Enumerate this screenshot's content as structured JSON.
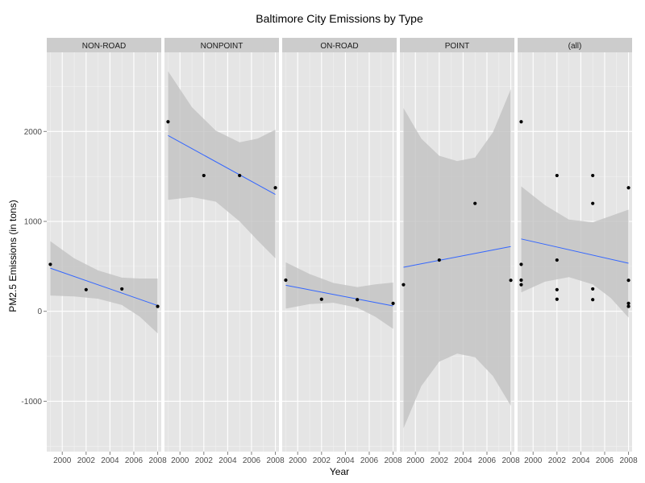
{
  "chart_data": {
    "type": "scatter",
    "title": "Baltimore City Emissions by Type",
    "xlabel": "Year",
    "ylabel": "PM2.5 Emissions (in tons)",
    "xlim": [
      1998.7,
      2008.3
    ],
    "ylim": [
      -1560,
      2880
    ],
    "x_ticks": [
      2000,
      2002,
      2004,
      2006,
      2008
    ],
    "y_ticks": [
      -1000,
      0,
      1000,
      2000
    ],
    "grid": true,
    "colors": {
      "panel_bg": "#e5e5e5",
      "strip_bg": "#cccccc",
      "grid_major": "#ffffff",
      "grid_minor": "#f2f2f2",
      "points": "#000000",
      "fit_line": "#3366ff",
      "ribbon": "#bfbfbf"
    },
    "facets": [
      {
        "label": "NON-ROAD",
        "points": [
          {
            "x": 1999,
            "y": 522
          },
          {
            "x": 2002,
            "y": 241
          },
          {
            "x": 2005,
            "y": 249
          },
          {
            "x": 2008,
            "y": 55
          }
        ],
        "fit": {
          "x": [
            1999,
            2008
          ],
          "y": [
            480,
            64
          ]
        },
        "band": [
          {
            "x": 1999,
            "lo": 175,
            "hi": 780
          },
          {
            "x": 2001,
            "lo": 165,
            "hi": 590
          },
          {
            "x": 2003,
            "lo": 140,
            "hi": 455
          },
          {
            "x": 2005,
            "lo": 70,
            "hi": 375
          },
          {
            "x": 2006.5,
            "lo": -60,
            "hi": 365
          },
          {
            "x": 2008,
            "lo": -245,
            "hi": 365
          }
        ]
      },
      {
        "label": "NONPOINT",
        "points": [
          {
            "x": 1999,
            "y": 2108
          },
          {
            "x": 2002,
            "y": 1510
          },
          {
            "x": 2005,
            "y": 1510
          },
          {
            "x": 2008,
            "y": 1374
          }
        ],
        "fit": {
          "x": [
            1999,
            2008
          ],
          "y": [
            1955,
            1300
          ]
        },
        "band": [
          {
            "x": 1999,
            "lo": 1240,
            "hi": 2670
          },
          {
            "x": 2001,
            "lo": 1270,
            "hi": 2270
          },
          {
            "x": 2003,
            "lo": 1220,
            "hi": 2010
          },
          {
            "x": 2005,
            "lo": 1000,
            "hi": 1880
          },
          {
            "x": 2006.5,
            "lo": 790,
            "hi": 1920
          },
          {
            "x": 2008,
            "lo": 590,
            "hi": 2020
          }
        ]
      },
      {
        "label": "ON-ROAD",
        "points": [
          {
            "x": 1999,
            "y": 347
          },
          {
            "x": 2002,
            "y": 134
          },
          {
            "x": 2005,
            "y": 130
          },
          {
            "x": 2008,
            "y": 88
          }
        ],
        "fit": {
          "x": [
            1999,
            2008
          ],
          "y": [
            290,
            60
          ]
        },
        "band": [
          {
            "x": 1999,
            "lo": 30,
            "hi": 545
          },
          {
            "x": 2001,
            "lo": 80,
            "hi": 415
          },
          {
            "x": 2003,
            "lo": 95,
            "hi": 315
          },
          {
            "x": 2005,
            "lo": 40,
            "hi": 270
          },
          {
            "x": 2006.5,
            "lo": -60,
            "hi": 300
          },
          {
            "x": 2008,
            "lo": -195,
            "hi": 320
          }
        ]
      },
      {
        "label": "POINT",
        "points": [
          {
            "x": 1999,
            "y": 296
          },
          {
            "x": 2002,
            "y": 570
          },
          {
            "x": 2005,
            "y": 1200
          },
          {
            "x": 2008,
            "y": 345
          }
        ],
        "fit": {
          "x": [
            1999,
            2008
          ],
          "y": [
            490,
            720
          ]
        },
        "band": [
          {
            "x": 1999,
            "lo": -1300,
            "hi": 2260
          },
          {
            "x": 2000.5,
            "lo": -830,
            "hi": 1920
          },
          {
            "x": 2002,
            "lo": -560,
            "hi": 1730
          },
          {
            "x": 2003.5,
            "lo": -470,
            "hi": 1670
          },
          {
            "x": 2005,
            "lo": -510,
            "hi": 1710
          },
          {
            "x": 2006.5,
            "lo": -720,
            "hi": 1990
          },
          {
            "x": 2008,
            "lo": -1050,
            "hi": 2470
          }
        ]
      },
      {
        "label": "(all)",
        "points": [
          {
            "x": 1999,
            "y": 2108
          },
          {
            "x": 1999,
            "y": 522
          },
          {
            "x": 1999,
            "y": 347
          },
          {
            "x": 1999,
            "y": 296
          },
          {
            "x": 2002,
            "y": 1510
          },
          {
            "x": 2002,
            "y": 570
          },
          {
            "x": 2002,
            "y": 241
          },
          {
            "x": 2002,
            "y": 134
          },
          {
            "x": 2005,
            "y": 1510
          },
          {
            "x": 2005,
            "y": 1200
          },
          {
            "x": 2005,
            "y": 249
          },
          {
            "x": 2005,
            "y": 130
          },
          {
            "x": 2008,
            "y": 1374
          },
          {
            "x": 2008,
            "y": 345
          },
          {
            "x": 2008,
            "y": 88
          },
          {
            "x": 2008,
            "y": 55
          }
        ],
        "fit": {
          "x": [
            1999,
            2008
          ],
          "y": [
            805,
            535
          ]
        },
        "band": [
          {
            "x": 1999,
            "lo": 210,
            "hi": 1390
          },
          {
            "x": 2001,
            "lo": 330,
            "hi": 1180
          },
          {
            "x": 2003,
            "lo": 380,
            "hi": 1020
          },
          {
            "x": 2005,
            "lo": 300,
            "hi": 990
          },
          {
            "x": 2006.5,
            "lo": 150,
            "hi": 1060
          },
          {
            "x": 2008,
            "lo": -70,
            "hi": 1130
          }
        ]
      }
    ]
  }
}
